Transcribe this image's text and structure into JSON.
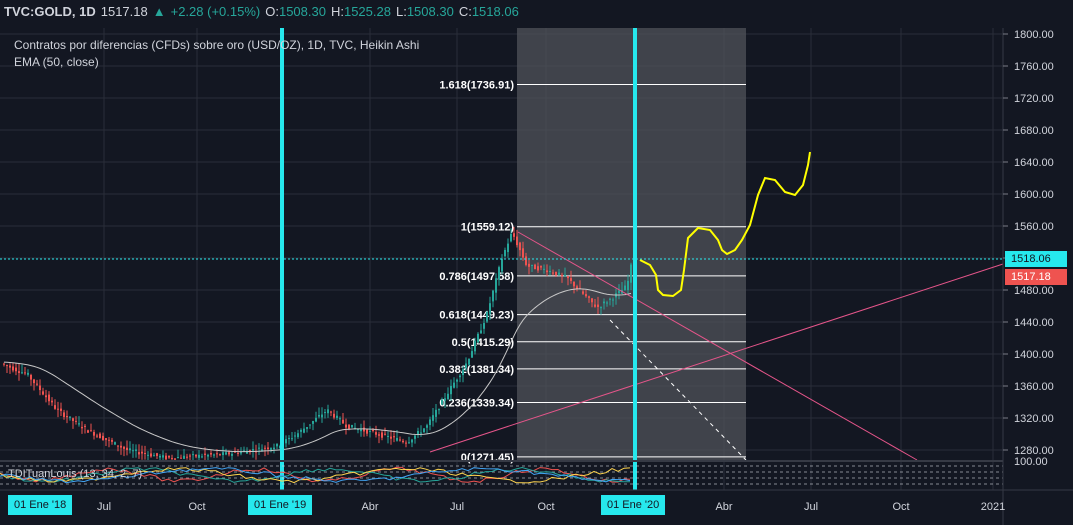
{
  "header": {
    "symbol": "TVC:GOLD, 1D",
    "last": "1517.18",
    "change": "+2.28 (+0.15%)",
    "open_label": "O:",
    "open": "1508.30",
    "high_label": "H:",
    "high": "1525.28",
    "low_label": "L:",
    "low": "1508.30",
    "close_label": "C:",
    "close": "1518.06"
  },
  "title": "Contratos por diferencias (CFDs) sobre oro (USD/OZ), 1D, TVC, Heikin Ashi",
  "ema_label": "EMA (50, close)",
  "indicator_label": "TDITuanLouis (13, 34, 2, 7)",
  "price_axis": {
    "ticks": [
      "1800.00",
      "1760.00",
      "1720.00",
      "1680.00",
      "1640.00",
      "1600.00",
      "1560.00",
      "1520.00",
      "1480.00",
      "1440.00",
      "1400.00",
      "1360.00",
      "1320.00",
      "1280.00"
    ],
    "ind_tick": "100.00",
    "last_price_tag": "1518.06",
    "close_tag": "1517.18"
  },
  "time_axis": {
    "labels": [
      "Jul",
      "Oct",
      "Abr",
      "Jul",
      "Oct",
      "Abr",
      "Jul",
      "Oct",
      "2021"
    ],
    "highlighted": [
      "01 Ene '18",
      "01 Ene '19",
      "01 Ene '20"
    ]
  },
  "fib_levels": [
    {
      "label": "1.618(1736.91)",
      "price": 1736.91
    },
    {
      "label": "1(1559.12)",
      "price": 1559.12
    },
    {
      "label": "0.786(1497.58)",
      "price": 1497.58
    },
    {
      "label": "0.618(1449.23)",
      "price": 1449.23
    },
    {
      "label": "0.5(1415.29)",
      "price": 1415.29
    },
    {
      "label": "0.382(1381.34)",
      "price": 1381.34
    },
    {
      "label": "0.236(1339.34)",
      "price": 1339.34
    },
    {
      "label": "0(1271.45)",
      "price": 1271.45
    }
  ],
  "colors": {
    "background": "#131722",
    "up": "#26a69a",
    "down": "#ef5350",
    "highlight": "#26e8ed",
    "trend": "#e5558a",
    "drawing": "#ffff00",
    "ema": "#c8c8c8"
  }
}
